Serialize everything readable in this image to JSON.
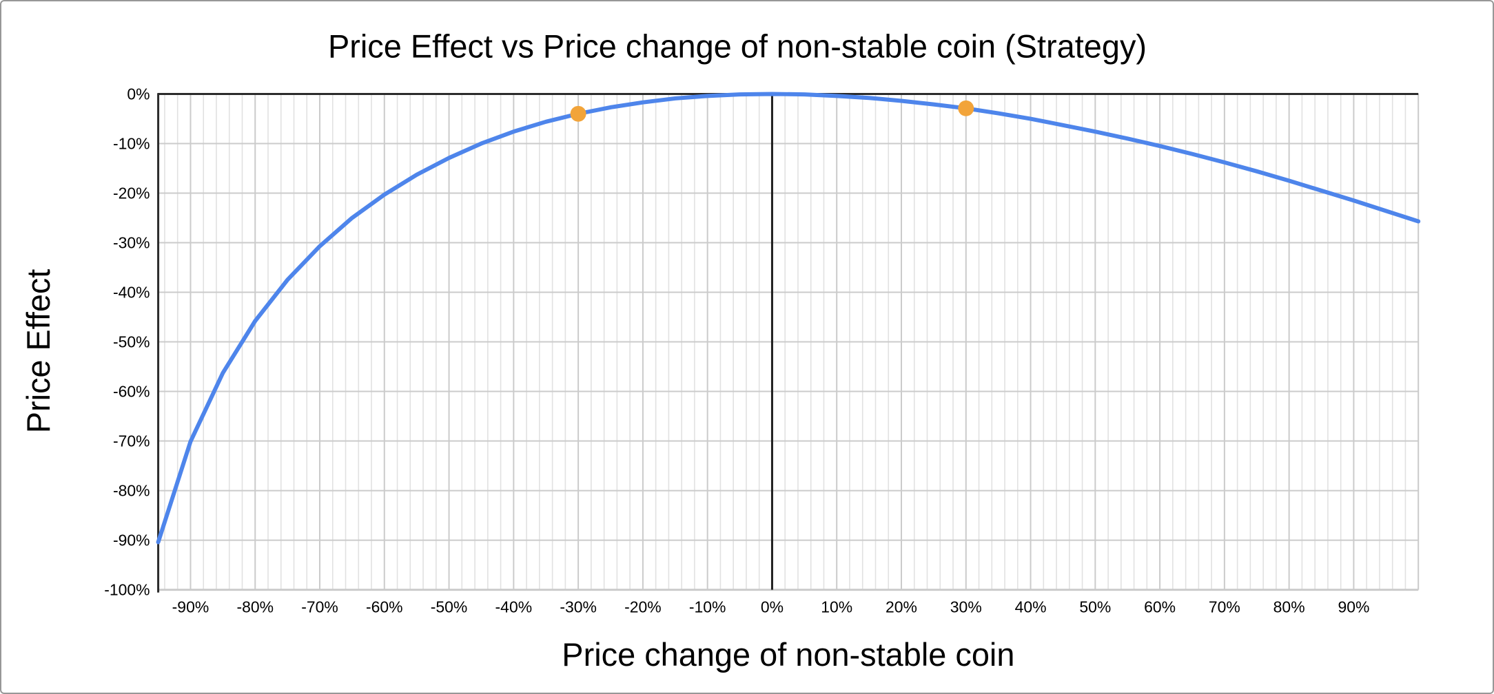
{
  "chart_data": {
    "type": "line",
    "title": "Price Effect vs Price change of non-stable coin (Strategy)",
    "xlabel": "Price change of non-stable coin",
    "ylabel": "Price Effect",
    "xlim": [
      -95,
      100
    ],
    "ylim": [
      -100,
      0
    ],
    "grid": {
      "x_major_step": 10,
      "x_minor_step": 2,
      "y_major_step": 10,
      "y_minor": false
    },
    "legend_position": "none",
    "x_ticks": [
      {
        "value": -90,
        "label": "-90%"
      },
      {
        "value": -80,
        "label": "-80%"
      },
      {
        "value": -70,
        "label": "-70%"
      },
      {
        "value": -60,
        "label": "-60%"
      },
      {
        "value": -50,
        "label": "-50%"
      },
      {
        "value": -40,
        "label": "-40%"
      },
      {
        "value": -30,
        "label": "-30%"
      },
      {
        "value": -20,
        "label": "-20%"
      },
      {
        "value": -10,
        "label": "-10%"
      },
      {
        "value": 0,
        "label": "0%"
      },
      {
        "value": 10,
        "label": "10%"
      },
      {
        "value": 20,
        "label": "20%"
      },
      {
        "value": 30,
        "label": "30%"
      },
      {
        "value": 40,
        "label": "40%"
      },
      {
        "value": 50,
        "label": "50%"
      },
      {
        "value": 60,
        "label": "60%"
      },
      {
        "value": 70,
        "label": "70%"
      },
      {
        "value": 80,
        "label": "80%"
      },
      {
        "value": 90,
        "label": "90%"
      }
    ],
    "y_ticks": [
      {
        "value": 0,
        "label": "0%"
      },
      {
        "value": -10,
        "label": "-10%"
      },
      {
        "value": -20,
        "label": "-20%"
      },
      {
        "value": -30,
        "label": "-30%"
      },
      {
        "value": -40,
        "label": "-40%"
      },
      {
        "value": -50,
        "label": "-50%"
      },
      {
        "value": -60,
        "label": "-60%"
      },
      {
        "value": -70,
        "label": "-70%"
      },
      {
        "value": -80,
        "label": "-80%"
      },
      {
        "value": -90,
        "label": "-90%"
      },
      {
        "value": -100,
        "label": "-100%"
      }
    ],
    "series": [
      {
        "name": "Strategy",
        "color": "#4E85EB",
        "x": [
          -95,
          -90,
          -85,
          -80,
          -75,
          -70,
          -65,
          -60,
          -55,
          -50,
          -45,
          -40,
          -35,
          -30,
          -25,
          -20,
          -15,
          -10,
          -5,
          0,
          5,
          10,
          15,
          20,
          25,
          30,
          35,
          40,
          45,
          50,
          55,
          60,
          65,
          70,
          75,
          80,
          85,
          90,
          95,
          100
        ],
        "y": [
          -90.4,
          -70.1,
          -56.3,
          -45.8,
          -37.5,
          -30.7,
          -25.0,
          -20.3,
          -16.3,
          -12.9,
          -10.0,
          -7.6,
          -5.6,
          -4.0,
          -2.7,
          -1.7,
          -0.9,
          -0.4,
          -0.1,
          0.0,
          -0.1,
          -0.4,
          -0.8,
          -1.4,
          -2.1,
          -2.9,
          -3.9,
          -5.0,
          -6.3,
          -7.6,
          -9.0,
          -10.5,
          -12.1,
          -13.8,
          -15.6,
          -17.5,
          -19.5,
          -21.5,
          -23.6,
          -25.7
        ]
      }
    ],
    "highlight_points": {
      "color": "#F2A43A",
      "points": [
        {
          "x": -30,
          "y": -4.0
        },
        {
          "x": 30,
          "y": -2.9
        }
      ]
    },
    "colors": {
      "line": "#4E85EB",
      "point": "#F2A43A",
      "grid_major": "#CBCBCB",
      "grid_minor": "#E1E1E1",
      "axis_dark": "#2B2B2B",
      "zero_line": "#1F1F1F",
      "baseline_bottom": "#CBCBCB",
      "text": "#000000",
      "frame_border": "#979797"
    }
  }
}
